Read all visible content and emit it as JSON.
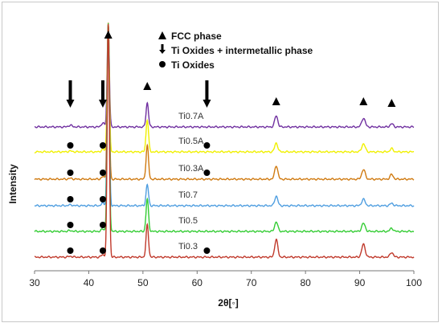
{
  "chart_data": {
    "type": "line",
    "title": "",
    "xlabel": "2θ[◦]",
    "ylabel": "Intensity",
    "xlim": [
      30,
      100
    ],
    "x_ticks": [
      30,
      40,
      50,
      60,
      70,
      80,
      90,
      100
    ],
    "grid": false,
    "legend": {
      "placement": "top-right",
      "entries": [
        {
          "marker": "triangle",
          "label": "FCC phase"
        },
        {
          "marker": "arrow-down",
          "label": "Ti Oxides + intermetallic phase"
        },
        {
          "marker": "circle",
          "label": "Ti Oxides"
        }
      ]
    },
    "series": [
      {
        "name": "Ti0.7A",
        "color": "#7030a0"
      },
      {
        "name": "Ti0.5A",
        "color": "#f0f000"
      },
      {
        "name": "Ti0.3A",
        "color": "#d07a10"
      },
      {
        "name": "Ti0.7",
        "color": "#4f9ee0"
      },
      {
        "name": "Ti0.5",
        "color": "#33cc33"
      },
      {
        "name": "Ti0.3",
        "color": "#c0392b"
      }
    ],
    "annotations": {
      "fcc_peaks_2theta": [
        43.6,
        50.8,
        74.6,
        90.7,
        95.9
      ],
      "oxide_intermetallic_arrows_2theta": [
        36.6,
        42.6,
        61.8
      ],
      "ti_oxide_dots": [
        {
          "series": "Ti0.5A",
          "positions": [
            36.6,
            42.6,
            61.8
          ]
        },
        {
          "series": "Ti0.3A",
          "positions": [
            36.6,
            42.6,
            61.8
          ]
        },
        {
          "series": "Ti0.7",
          "positions": [
            36.6,
            42.6
          ]
        },
        {
          "series": "Ti0.5",
          "positions": [
            36.6,
            42.6
          ]
        },
        {
          "series": "Ti0.3",
          "positions": [
            36.6,
            42.6,
            61.8
          ]
        }
      ]
    }
  }
}
